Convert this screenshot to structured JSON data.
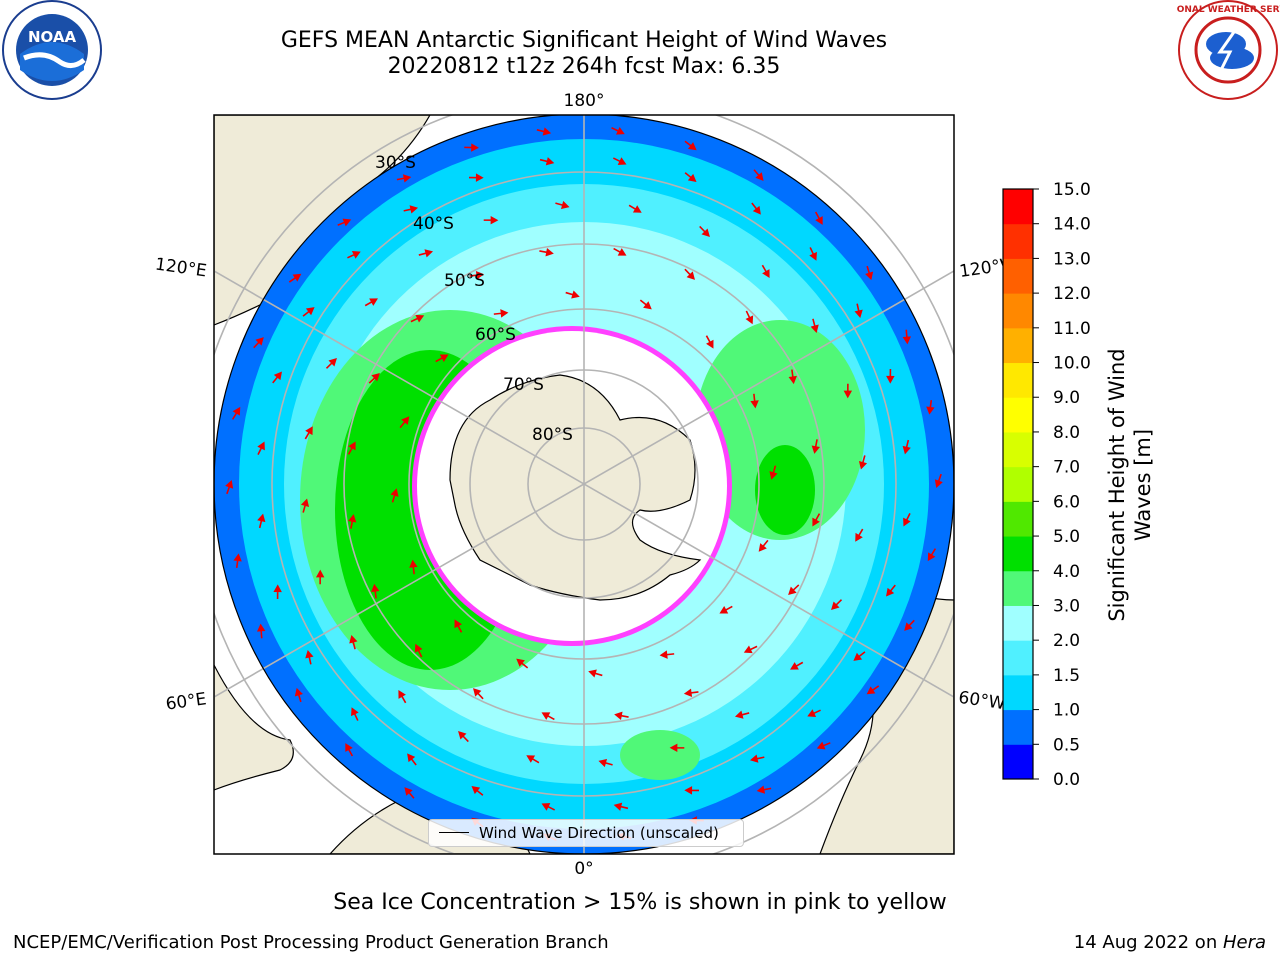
{
  "title": {
    "line1": "GEFS MEAN Antarctic Significant Height of Wind Waves",
    "line2": "20220812 t12z 264h fcst   Max: 6.35"
  },
  "map": {
    "projection": "south-polar-stereographic",
    "meridian_labels": {
      "top": "180°",
      "bottom": "0°",
      "upper_left": "120°E",
      "lower_left": "60°E",
      "upper_right": "120°W",
      "lower_right": "60°W"
    },
    "latitude_labels": [
      "30°S",
      "40°S",
      "50°S",
      "60°S",
      "70°S",
      "80°S"
    ],
    "legend_label": "Wind Wave Direction (unscaled)"
  },
  "colorbar": {
    "title_line1": "Significant Height of Wind",
    "title_line2": "Waves [m]",
    "ticks": [
      "0.0",
      "0.5",
      "1.0",
      "1.5",
      "2.0",
      "3.0",
      "4.0",
      "5.0",
      "6.0",
      "7.0",
      "8.0",
      "9.0",
      "10.0",
      "11.0",
      "12.0",
      "13.0",
      "14.0",
      "15.0"
    ],
    "colors": [
      "#0000ff",
      "#0070ff",
      "#00d8ff",
      "#50f0ff",
      "#a0ffff",
      "#50f878",
      "#00e000",
      "#50e800",
      "#b0ff00",
      "#d8ff00",
      "#ffff00",
      "#ffe800",
      "#ffb000",
      "#ff8800",
      "#ff6000",
      "#ff3000",
      "#ff0000"
    ]
  },
  "notes": {
    "sea_ice": "Sea Ice Concentration > 15% is shown in pink to yellow",
    "credit_left": "NCEP/EMC/Verification Post Processing Product Generation Branch",
    "credit_right_date": "14 Aug 2022 on ",
    "credit_right_system": "Hera"
  },
  "logos": {
    "noaa_text": "NOAA",
    "nws_text": "NATIONAL WEATHER SERVICE"
  },
  "colors": {
    "land": "#efebd8",
    "wave_arrow": "#ee0000",
    "grid": "#b4b4b4",
    "ice_edge": "#ff40ff"
  }
}
